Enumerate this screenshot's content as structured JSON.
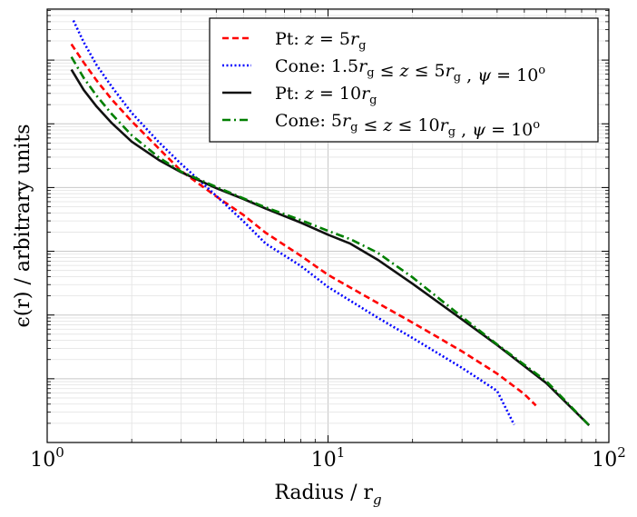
{
  "chart_data": {
    "type": "line",
    "xlabel": "Radius / r",
    "xlabel_sub": "g",
    "ylabel": "ϵ(r) / arbitrary units",
    "xscale": "log",
    "yscale": "log",
    "xlim": [
      1,
      100
    ],
    "ylim_decades": [
      0,
      6.8
    ],
    "x_ticks": [
      {
        "base": "10",
        "exp": "0"
      },
      {
        "base": "10",
        "exp": "1"
      },
      {
        "base": "10",
        "exp": "2"
      }
    ],
    "grid": true,
    "legend_position": "top-right",
    "series": [
      {
        "legend": [
          {
            "t": "Pt: "
          },
          {
            "t": "z",
            "i": true
          },
          {
            "t": " = 5"
          },
          {
            "t": "r",
            "i": true
          },
          {
            "t": "g",
            "sub": true
          }
        ],
        "color": "#ff0000",
        "style": "dashed",
        "x": [
          1.22,
          1.35,
          1.5,
          1.7,
          2.0,
          2.5,
          3.0,
          4.0,
          5.0,
          6.0,
          8.0,
          10.0,
          15.0,
          20.0,
          30.0,
          40.0,
          50.0,
          55.0
        ],
        "y": [
          6.25,
          5.96,
          5.68,
          5.38,
          5.04,
          4.61,
          4.26,
          3.86,
          3.57,
          3.29,
          2.93,
          2.63,
          2.19,
          1.88,
          1.43,
          1.08,
          0.76,
          0.58
        ]
      },
      {
        "legend": [
          {
            "t": "Cone: 1.5"
          },
          {
            "t": "r",
            "i": true
          },
          {
            "t": "g",
            "sub": true
          },
          {
            "t": " ≤ "
          },
          {
            "t": "z",
            "i": true
          },
          {
            "t": " ≤ 5"
          },
          {
            "t": "r",
            "i": true
          },
          {
            "t": "g",
            "sub": true
          },
          {
            "t": " , "
          },
          {
            "t": "ψ",
            "i": true
          },
          {
            "t": " = 10"
          },
          {
            "t": "o",
            "sup": true
          }
        ],
        "color": "#0000ff",
        "style": "dotted",
        "x": [
          1.24,
          1.35,
          1.5,
          1.7,
          2.0,
          2.5,
          3.0,
          4.0,
          5.0,
          6.0,
          8.0,
          10.0,
          15.0,
          20.0,
          30.0,
          40.0,
          46.0
        ],
        "y": [
          6.62,
          6.28,
          5.92,
          5.58,
          5.17,
          4.71,
          4.37,
          3.87,
          3.47,
          3.12,
          2.77,
          2.44,
          1.96,
          1.64,
          1.17,
          0.81,
          0.28
        ]
      },
      {
        "legend": [
          {
            "t": "Pt: "
          },
          {
            "t": "z",
            "i": true
          },
          {
            "t": " = 10"
          },
          {
            "t": "r",
            "i": true
          },
          {
            "t": "g",
            "sub": true
          }
        ],
        "color": "#111111",
        "style": "solid",
        "x": [
          1.22,
          1.35,
          1.5,
          1.7,
          2.0,
          2.5,
          3.0,
          4.0,
          5.0,
          6.0,
          8.0,
          10.0,
          12.0,
          15.0,
          20.0,
          30.0,
          40.0,
          60.0,
          85.0
        ],
        "y": [
          5.85,
          5.53,
          5.27,
          5.01,
          4.72,
          4.43,
          4.24,
          3.99,
          3.82,
          3.67,
          3.45,
          3.26,
          3.12,
          2.87,
          2.49,
          1.93,
          1.53,
          0.93,
          0.27
        ]
      },
      {
        "legend": [
          {
            "t": "Cone: 5"
          },
          {
            "t": "r",
            "i": true
          },
          {
            "t": "g",
            "sub": true
          },
          {
            "t": " ≤ "
          },
          {
            "t": "z",
            "i": true
          },
          {
            "t": " ≤ 10"
          },
          {
            "t": "r",
            "i": true
          },
          {
            "t": "g",
            "sub": true
          },
          {
            "t": " , "
          },
          {
            "t": "ψ",
            "i": true
          },
          {
            "t": " = 10"
          },
          {
            "t": "o",
            "sup": true
          }
        ],
        "color": "#007f00",
        "style": "dashdot",
        "x": [
          1.22,
          1.35,
          1.5,
          1.7,
          2.0,
          2.5,
          3.0,
          4.0,
          5.0,
          6.0,
          8.0,
          10.0,
          12.0,
          15.0,
          20.0,
          30.0,
          40.0,
          60.0,
          85.0
        ],
        "y": [
          6.05,
          5.72,
          5.44,
          5.15,
          4.82,
          4.47,
          4.25,
          4.01,
          3.83,
          3.69,
          3.49,
          3.32,
          3.19,
          2.98,
          2.59,
          1.97,
          1.54,
          0.96,
          0.27
        ]
      }
    ]
  }
}
